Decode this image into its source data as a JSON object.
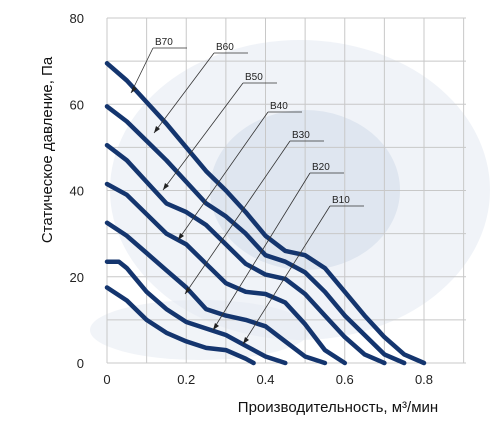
{
  "chart_data": {
    "type": "line",
    "title": "",
    "xlabel": "Производительность, м³/мин",
    "ylabel": "Статическое давление, Па",
    "xlim": [
      0,
      0.9
    ],
    "ylim": [
      0,
      80
    ],
    "x_ticks": [
      "0",
      "0.2",
      "0.4",
      "0.6",
      "0.8"
    ],
    "y_ticks": [
      "0",
      "20",
      "40",
      "60",
      "80"
    ],
    "grid": true,
    "legend": "inline-callouts",
    "line_color": "#14356e",
    "series": [
      {
        "name": "B70",
        "x": [
          0,
          0.05,
          0.1,
          0.15,
          0.2,
          0.25,
          0.3,
          0.35,
          0.4,
          0.45,
          0.5,
          0.55,
          0.6,
          0.65,
          0.7,
          0.75,
          0.8
        ],
        "y": [
          69.5,
          65.5,
          60.5,
          55.5,
          50,
          44.5,
          40,
          35,
          29.5,
          26,
          25,
          22,
          16.5,
          11,
          6,
          2,
          0
        ]
      },
      {
        "name": "B60",
        "x": [
          0,
          0.05,
          0.1,
          0.15,
          0.2,
          0.25,
          0.3,
          0.35,
          0.4,
          0.45,
          0.5,
          0.55,
          0.6,
          0.65,
          0.7,
          0.75
        ],
        "y": [
          59.5,
          56,
          51.5,
          47,
          42,
          37,
          34,
          30,
          25,
          23.5,
          21,
          16.5,
          11,
          6.5,
          2,
          0
        ]
      },
      {
        "name": "B50",
        "x": [
          0,
          0.05,
          0.1,
          0.15,
          0.2,
          0.25,
          0.3,
          0.35,
          0.4,
          0.45,
          0.5,
          0.55,
          0.6,
          0.65,
          0.7
        ],
        "y": [
          50.5,
          47,
          42,
          37,
          35,
          32,
          27.5,
          23,
          20.5,
          19.5,
          16,
          11,
          6,
          2,
          0
        ]
      },
      {
        "name": "B40",
        "x": [
          0,
          0.05,
          0.1,
          0.15,
          0.2,
          0.25,
          0.3,
          0.35,
          0.4,
          0.45,
          0.5,
          0.55,
          0.6
        ],
        "y": [
          41.5,
          39,
          34.5,
          30,
          27.5,
          23,
          18.5,
          16.5,
          16,
          14,
          9,
          3,
          0
        ]
      },
      {
        "name": "B30",
        "x": [
          0,
          0.05,
          0.1,
          0.15,
          0.2,
          0.25,
          0.3,
          0.35,
          0.4,
          0.45,
          0.5,
          0.55
        ],
        "y": [
          32.5,
          29.5,
          25.5,
          21.5,
          17.5,
          12.5,
          11,
          10,
          8.5,
          5,
          1.5,
          0
        ]
      },
      {
        "name": "B20",
        "x": [
          0,
          0.03,
          0.05,
          0.1,
          0.15,
          0.2,
          0.25,
          0.3,
          0.35,
          0.4,
          0.45
        ],
        "y": [
          23.5,
          23.5,
          22,
          16.5,
          12.5,
          9.5,
          8,
          6.5,
          4,
          1.5,
          0
        ]
      },
      {
        "name": "B10",
        "x": [
          0,
          0.05,
          0.1,
          0.15,
          0.2,
          0.25,
          0.3,
          0.35,
          0.37
        ],
        "y": [
          17.5,
          14.5,
          10,
          7,
          5,
          3.5,
          3,
          1,
          0
        ]
      }
    ]
  }
}
